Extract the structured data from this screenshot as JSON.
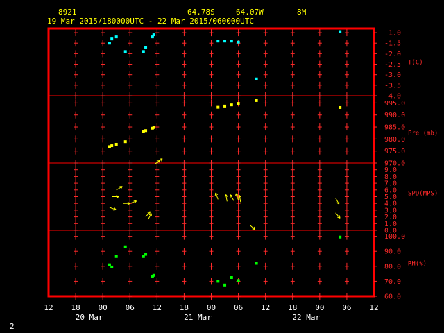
{
  "header": {
    "station": "8921",
    "lat": "64.78S",
    "lon": "64.07W",
    "height": "8M",
    "time_range": "19 Mar 2015/180000UTC - 22 Mar 2015/060000UTC"
  },
  "footer": {
    "page": "2"
  },
  "colors": {
    "frame": "#ff0000",
    "grid": "#ff2a2a",
    "temp": "#00ffff",
    "pres": "#ffff00",
    "wind": "#ffff00",
    "rh": "#00ff00"
  },
  "chart_data": {
    "type": "scatter",
    "x_axis": {
      "hour_ticks": [
        "12",
        "18",
        "00",
        "06",
        "12",
        "18",
        "00",
        "06",
        "12",
        "18",
        "00",
        "06",
        "12"
      ],
      "day_labels": [
        {
          "label": "20 Mar",
          "hours_from_start": 9
        },
        {
          "label": "21 Mar",
          "hours_from_start": 33
        },
        {
          "label": "22 Mar",
          "hours_from_start": 57
        }
      ],
      "start": "19 Mar 2015 12UTC",
      "range_hours": [
        0,
        72
      ]
    },
    "panels": [
      {
        "name": "T(C)",
        "color": "#00ffff",
        "ylim": [
          -4.0,
          -0.8
        ],
        "ticks": [
          "-1.0",
          "-1.5",
          "-2.0",
          "-2.5",
          "-3.0",
          "-3.5",
          "-4.0"
        ],
        "tick_values": [
          -1.0,
          -1.5,
          -2.0,
          -2.5,
          -3.0,
          -3.5,
          -4.0
        ],
        "points": [
          [
            13.5,
            -1.5
          ],
          [
            14,
            -1.3
          ],
          [
            15,
            -1.2
          ],
          [
            17,
            -1.9
          ],
          [
            21,
            -1.9
          ],
          [
            21.5,
            -1.7
          ],
          [
            23,
            -1.2
          ],
          [
            23.3,
            -1.1
          ],
          [
            37.5,
            -1.4
          ],
          [
            39,
            -1.4
          ],
          [
            40.5,
            -1.4
          ],
          [
            42,
            -1.45
          ],
          [
            46,
            -3.2
          ],
          [
            64.5,
            -0.95
          ]
        ]
      },
      {
        "name": "Pre (mb)",
        "color": "#ffff00",
        "ylim": [
          970.0,
          998.0
        ],
        "ticks": [
          "995.0",
          "990.0",
          "985.0",
          "980.0",
          "975.0",
          "970.0"
        ],
        "tick_values": [
          995.0,
          990.0,
          985.0,
          980.0,
          975.0,
          970.0
        ],
        "points": [
          [
            13.5,
            976.8
          ],
          [
            14,
            977.2
          ],
          [
            15,
            977.8
          ],
          [
            17,
            978.9
          ],
          [
            21,
            983.2
          ],
          [
            21.5,
            983.5
          ],
          [
            23,
            984.5
          ],
          [
            23.3,
            984.8
          ],
          [
            37.5,
            993.2
          ],
          [
            39,
            993.7
          ],
          [
            40.5,
            994.2
          ],
          [
            42,
            994.8
          ],
          [
            46,
            996.0
          ],
          [
            64.5,
            993.1
          ]
        ]
      },
      {
        "name": "SPD(MPS)",
        "color": "#ffff00",
        "ylim": [
          0.0,
          10.0
        ],
        "ticks": [
          "9.0",
          "8.0",
          "7.0",
          "6.0",
          "5.0",
          "4.0",
          "3.0",
          "2.0",
          "1.0",
          "0.0"
        ],
        "tick_values": [
          9.0,
          8.0,
          7.0,
          6.0,
          5.0,
          4.0,
          3.0,
          2.0,
          1.0,
          0.0
        ],
        "winds": [
          [
            14,
            5.0,
            0
          ],
          [
            15,
            6.0,
            30
          ],
          [
            16.5,
            4.0,
            0
          ],
          [
            18,
            4.0,
            20
          ],
          [
            13.5,
            3.4,
            -20
          ],
          [
            21.5,
            2.0,
            50
          ],
          [
            22,
            1.6,
            60
          ],
          [
            23.5,
            9.8,
            40
          ],
          [
            24,
            10.0,
            40
          ],
          [
            37.5,
            4.6,
            110
          ],
          [
            39.5,
            4.3,
            100
          ],
          [
            41,
            4.4,
            120
          ],
          [
            42,
            4.5,
            110
          ],
          [
            42.5,
            4.2,
            100
          ],
          [
            44.5,
            0.8,
            -40
          ],
          [
            63.5,
            4.8,
            -60
          ],
          [
            63.5,
            2.6,
            -50
          ]
        ]
      },
      {
        "name": "RH(%)",
        "color": "#00ff00",
        "ylim": [
          60.0,
          104.0
        ],
        "ticks": [
          "100.0",
          "90.0",
          "80.0",
          "70.0",
          "60.0"
        ],
        "tick_values": [
          100.0,
          90.0,
          80.0,
          70.0,
          60.0
        ],
        "points": [
          [
            13.5,
            81
          ],
          [
            14,
            79.5
          ],
          [
            15,
            86.5
          ],
          [
            17,
            93
          ],
          [
            21,
            86.5
          ],
          [
            21.5,
            88
          ],
          [
            23,
            73
          ],
          [
            23.3,
            74
          ],
          [
            37.5,
            70
          ],
          [
            39,
            67.5
          ],
          [
            40.5,
            72.5
          ],
          [
            42,
            70.5
          ],
          [
            46,
            82
          ],
          [
            64.5,
            99.5
          ]
        ]
      }
    ]
  }
}
